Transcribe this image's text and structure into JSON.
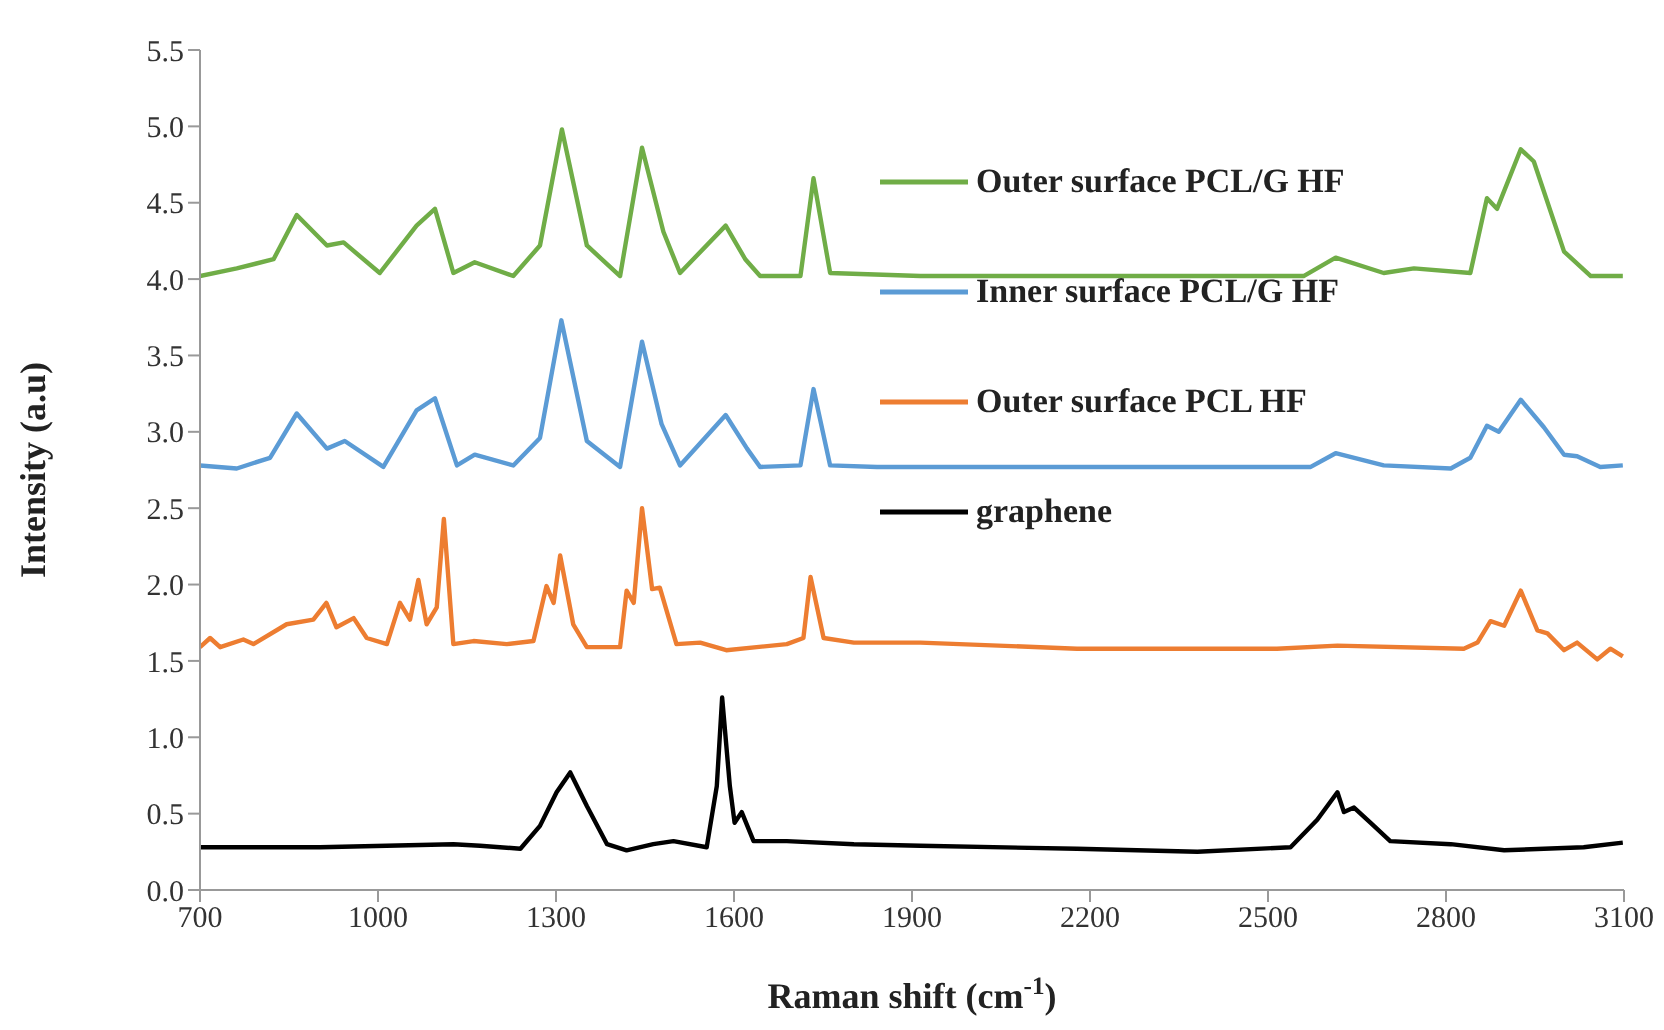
{
  "chart_data": {
    "type": "line",
    "xlabel": "Raman shift (cm$^{-1}$)",
    "ylabel": "Intensity (a.u)",
    "xlim": [
      700,
      3100
    ],
    "xticks": [
      700,
      1000,
      1300,
      1600,
      1900,
      2200,
      2500,
      2800,
      3100
    ],
    "ylim": [
      0,
      5.5
    ],
    "yticks": [
      {
        "value": 0,
        "label": "0.0"
      },
      {
        "value": 0.5,
        "label": "0.5"
      },
      {
        "value": 1,
        "label": "1.0"
      },
      {
        "value": 1.5,
        "label": "1.5"
      },
      {
        "value": 2,
        "label": "2.0"
      },
      {
        "value": 2.5,
        "label": "2.5"
      },
      {
        "value": 3,
        "label": "3.0"
      },
      {
        "value": 3.5,
        "label": "3.5"
      },
      {
        "value": 4,
        "label": "4.0"
      },
      {
        "value": 4.5,
        "label": "4.5"
      },
      {
        "value": 5,
        "label": "5.0"
      },
      {
        "value": 5.5,
        "label": "5.5"
      }
    ],
    "grid": false,
    "legend": "right",
    "marker": "none",
    "line_style": "solid",
    "series": [
      {
        "name": "Outer surface PCL/G HF",
        "color": "#70ad47",
        "x": [
          700,
          762,
          824,
          863,
          914,
          942,
          1003,
          1065,
          1096,
          1127,
          1163,
          1228,
          1273,
          1310,
          1352,
          1408,
          1445,
          1481,
          1509,
          1586,
          1619,
          1644,
          1712,
          1734,
          1762,
          1914,
          2560,
          2614,
          2695,
          2746,
          2841,
          2869,
          2886,
          2926,
          2948,
          2999,
          3044,
          3098
        ],
        "values": [
          4.02,
          4.07,
          4.13,
          4.42,
          4.22,
          4.24,
          4.04,
          4.35,
          4.46,
          4.04,
          4.11,
          4.02,
          4.22,
          4.98,
          4.22,
          4.02,
          4.86,
          4.31,
          4.04,
          4.35,
          4.13,
          4.02,
          4.02,
          4.66,
          4.04,
          4.02,
          4.02,
          4.14,
          4.04,
          4.07,
          4.04,
          4.53,
          4.46,
          4.85,
          4.77,
          4.18,
          4.02,
          4.02
        ]
      },
      {
        "name": "Inner surface PCL/G HF",
        "color": "#5b9bd5",
        "x": [
          700,
          762,
          818,
          863,
          914,
          944,
          1009,
          1065,
          1096,
          1133,
          1163,
          1228,
          1273,
          1309,
          1352,
          1408,
          1445,
          1478,
          1509,
          1586,
          1622,
          1644,
          1712,
          1734,
          1762,
          1841,
          2572,
          2614,
          2695,
          2808,
          2841,
          2869,
          2889,
          2926,
          2965,
          2999,
          3021,
          3060,
          3098
        ],
        "values": [
          2.78,
          2.76,
          2.83,
          3.12,
          2.89,
          2.94,
          2.77,
          3.14,
          3.22,
          2.78,
          2.85,
          2.78,
          2.96,
          3.73,
          2.94,
          2.77,
          3.59,
          3.05,
          2.78,
          3.11,
          2.89,
          2.77,
          2.78,
          3.28,
          2.78,
          2.77,
          2.77,
          2.86,
          2.78,
          2.76,
          2.83,
          3.04,
          3.0,
          3.21,
          3.03,
          2.85,
          2.84,
          2.77,
          2.78
        ]
      },
      {
        "name": "Outer surface PCL HF",
        "color": "#ed7d31",
        "x": [
          700,
          717,
          734,
          773,
          790,
          846,
          891,
          913,
          930,
          959,
          981,
          1015,
          1037,
          1054,
          1068,
          1082,
          1099,
          1111,
          1127,
          1161,
          1217,
          1262,
          1284,
          1296,
          1307,
          1329,
          1352,
          1408,
          1419,
          1431,
          1445,
          1462,
          1475,
          1503,
          1543,
          1587,
          1689,
          1717,
          1729,
          1751,
          1802,
          1914,
          2178,
          2515,
          2617,
          2830,
          2853,
          2875,
          2898,
          2926,
          2954,
          2971,
          2999,
          3021,
          3055,
          3077,
          3098
        ],
        "values": [
          1.59,
          1.65,
          1.59,
          1.64,
          1.61,
          1.74,
          1.77,
          1.88,
          1.72,
          1.78,
          1.65,
          1.61,
          1.88,
          1.77,
          2.03,
          1.74,
          1.85,
          2.43,
          1.61,
          1.63,
          1.61,
          1.63,
          1.99,
          1.88,
          2.19,
          1.74,
          1.59,
          1.59,
          1.96,
          1.88,
          2.5,
          1.97,
          1.98,
          1.61,
          1.62,
          1.57,
          1.61,
          1.65,
          2.05,
          1.65,
          1.62,
          1.62,
          1.58,
          1.58,
          1.6,
          1.58,
          1.62,
          1.76,
          1.73,
          1.96,
          1.7,
          1.68,
          1.57,
          1.62,
          1.51,
          1.58,
          1.53
        ]
      },
      {
        "name": "graphene",
        "color": "#000000",
        "x": [
          700,
          902,
          1127,
          1172,
          1240,
          1273,
          1301,
          1324,
          1352,
          1386,
          1419,
          1464,
          1498,
          1554,
          1571,
          1580,
          1593,
          1601,
          1613,
          1633,
          1689,
          1802,
          1914,
          2178,
          2381,
          2538,
          2583,
          2617,
          2628,
          2645,
          2673,
          2706,
          2808,
          2898,
          3032,
          3098
        ],
        "values": [
          0.28,
          0.28,
          0.3,
          0.29,
          0.27,
          0.42,
          0.64,
          0.77,
          0.55,
          0.3,
          0.26,
          0.3,
          0.32,
          0.28,
          0.68,
          1.26,
          0.68,
          0.44,
          0.51,
          0.32,
          0.32,
          0.3,
          0.29,
          0.27,
          0.25,
          0.28,
          0.46,
          0.64,
          0.51,
          0.54,
          0.44,
          0.32,
          0.3,
          0.26,
          0.28,
          0.31
        ]
      }
    ]
  }
}
